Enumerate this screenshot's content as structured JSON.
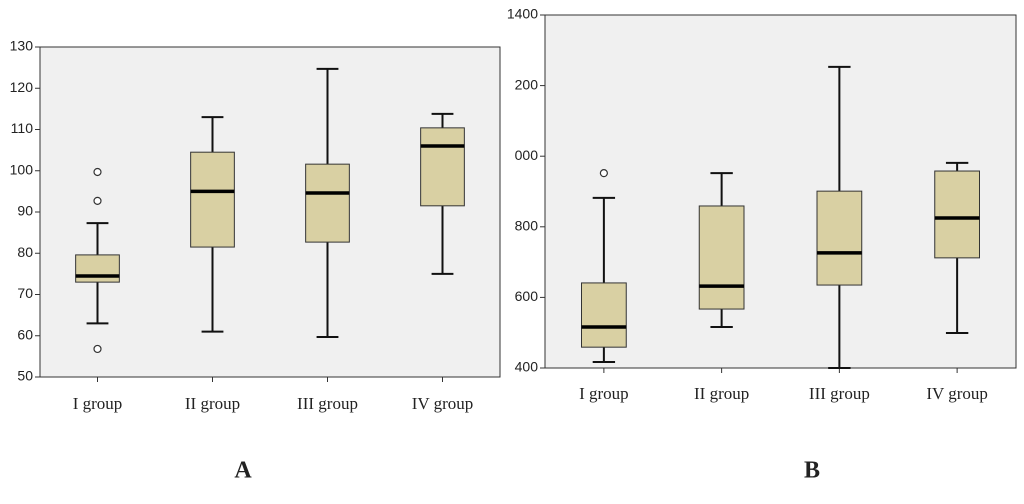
{
  "chart_data": [
    {
      "type": "box",
      "label": "A",
      "color": "#d9d0a3",
      "background": "#f0f0f0",
      "categories": [
        "I group",
        "II group",
        "III group",
        "IV group"
      ],
      "ylim": [
        50,
        130
      ],
      "yticks": [
        50,
        60,
        70,
        80,
        90,
        100,
        110,
        120,
        130
      ],
      "boxes": [
        {
          "whislo": 63,
          "q1": 73,
          "med": 74.5,
          "q3": 79.6,
          "whishi": 87.3,
          "fliers": [
            99.7,
            92.7,
            56.8
          ]
        },
        {
          "whislo": 61,
          "q1": 81.5,
          "med": 95,
          "q3": 104.5,
          "whishi": 113,
          "fliers": []
        },
        {
          "whislo": 59.7,
          "q1": 82.7,
          "med": 94.6,
          "q3": 101.6,
          "whishi": 124.7,
          "fliers": []
        },
        {
          "whislo": 75,
          "q1": 91.5,
          "med": 106,
          "q3": 110.4,
          "whishi": 113.8,
          "fliers": []
        }
      ]
    },
    {
      "type": "box",
      "label": "B",
      "color": "#d9d0a3",
      "background": "#f0f0f0",
      "categories": [
        "I group",
        "II group",
        "III group",
        "IV group"
      ],
      "ylim": [
        400,
        1400
      ],
      "yticks": [
        400,
        600,
        800,
        {
          "value": 1000,
          "label": "000"
        },
        {
          "value": 1200,
          "label": "200"
        },
        1400
      ],
      "boxes": [
        {
          "whislo": 417,
          "q1": 459,
          "med": 516,
          "q3": 641,
          "whishi": 882,
          "fliers": [
            952
          ]
        },
        {
          "whislo": 516,
          "q1": 567,
          "med": 632,
          "q3": 859,
          "whishi": 952,
          "fliers": []
        },
        {
          "whislo": 400,
          "q1": 635,
          "med": 726,
          "q3": 901,
          "whishi": 1253,
          "fliers": []
        },
        {
          "whislo": 499,
          "q1": 712,
          "med": 825,
          "q3": 958,
          "whishi": 981,
          "fliers": []
        }
      ]
    }
  ]
}
